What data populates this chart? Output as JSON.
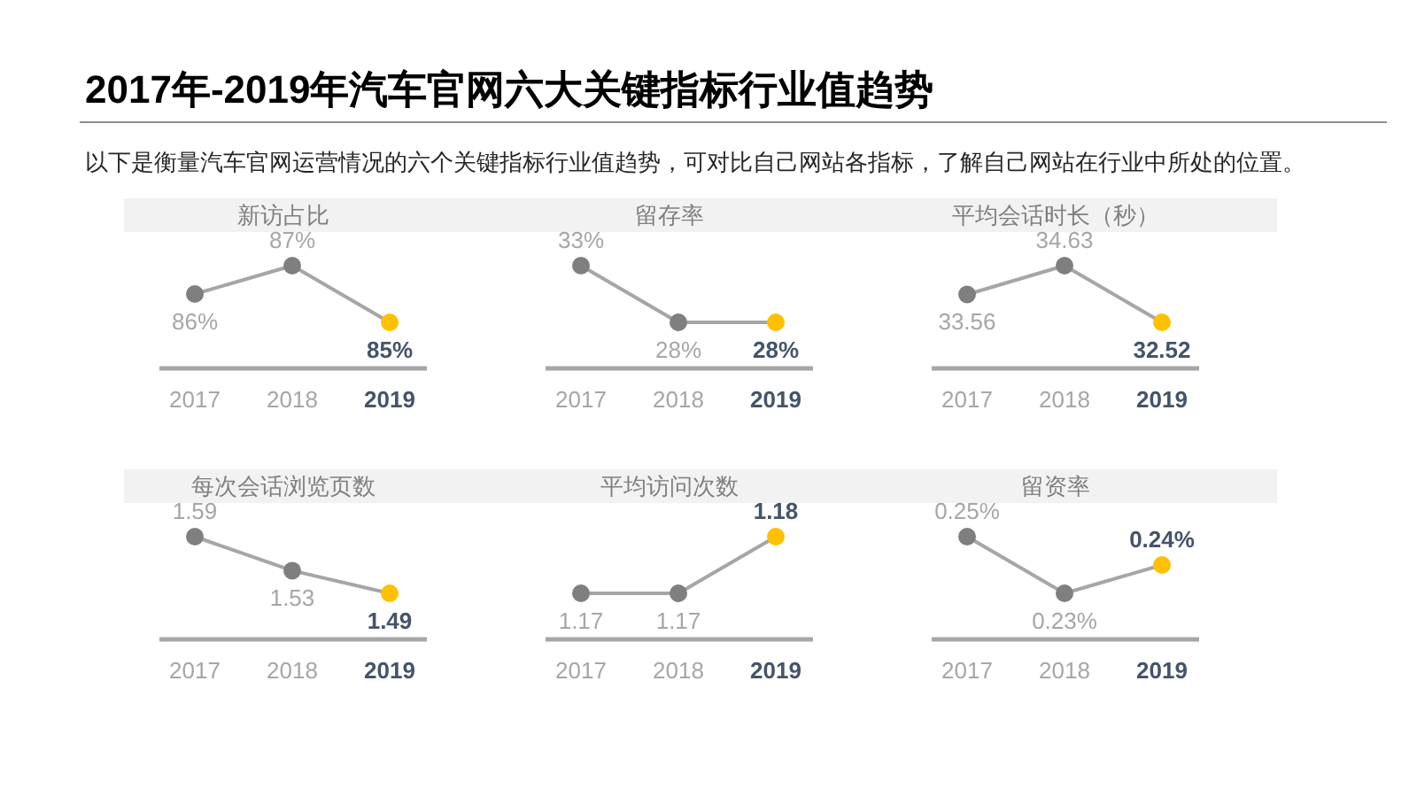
{
  "chart_data": [
    {
      "type": "other",
      "title": "2017年-2019年汽车官网六大关键指标行业值趋势",
      "subtitle": "以下是衡量汽车官网运营情况的六个关键指标行业值趋势，可对比自己网站各指标，了解自己网站在行业中所处的位置。"
    },
    {
      "type": "line",
      "title": "新访占比",
      "categories": [
        "2017",
        "2018",
        "2019"
      ],
      "values": [
        86,
        87,
        85
      ],
      "value_labels": [
        "86%",
        "87%",
        "85%"
      ],
      "color": "#a6a6a6",
      "colors": [
        "#7f7f7f",
        "#7f7f7f",
        "#ffc000"
      ],
      "marker": "circle"
    },
    {
      "type": "line",
      "title": "留存率",
      "categories": [
        "2017",
        "2018",
        "2019"
      ],
      "values": [
        33,
        28,
        28
      ],
      "value_labels": [
        "33%",
        "28%",
        "28%"
      ],
      "color": "#a6a6a6",
      "colors": [
        "#7f7f7f",
        "#7f7f7f",
        "#ffc000"
      ],
      "marker": "circle"
    },
    {
      "type": "line",
      "title": "平均会话时长（秒）",
      "categories": [
        "2017",
        "2018",
        "2019"
      ],
      "values": [
        33.56,
        34.63,
        32.52
      ],
      "data_labels": true,
      "color": "#a6a6a6",
      "colors": [
        "#7f7f7f",
        "#7f7f7f",
        "#ffc000"
      ],
      "marker": "circle"
    },
    {
      "type": "line",
      "title": "每次会话浏览页数",
      "categories": [
        "2017",
        "2018",
        "2019"
      ],
      "values": [
        1.59,
        1.53,
        1.49
      ],
      "data_labels": true,
      "color": "#a6a6a6",
      "colors": [
        "#7f7f7f",
        "#7f7f7f",
        "#ffc000"
      ],
      "marker": "circle"
    },
    {
      "type": "line",
      "title": "平均访问次数",
      "categories": [
        "2017",
        "2018",
        "2019"
      ],
      "values": [
        1.17,
        1.17,
        1.18
      ],
      "data_labels": true,
      "color": "#a6a6a6",
      "colors": [
        "#7f7f7f",
        "#7f7f7f",
        "#ffc000"
      ],
      "marker": "circle"
    },
    {
      "type": "line",
      "title": "留资率",
      "categories": [
        "2017",
        "2018",
        "2019"
      ],
      "values": [
        0.25,
        0.23,
        0.24
      ],
      "value_labels": [
        "0.25%",
        "0.23%",
        "0.24%"
      ],
      "color": "#a6a6a6",
      "colors": [
        "#7f7f7f",
        "#7f7f7f",
        "#ffc000"
      ],
      "marker": "circle"
    }
  ]
}
